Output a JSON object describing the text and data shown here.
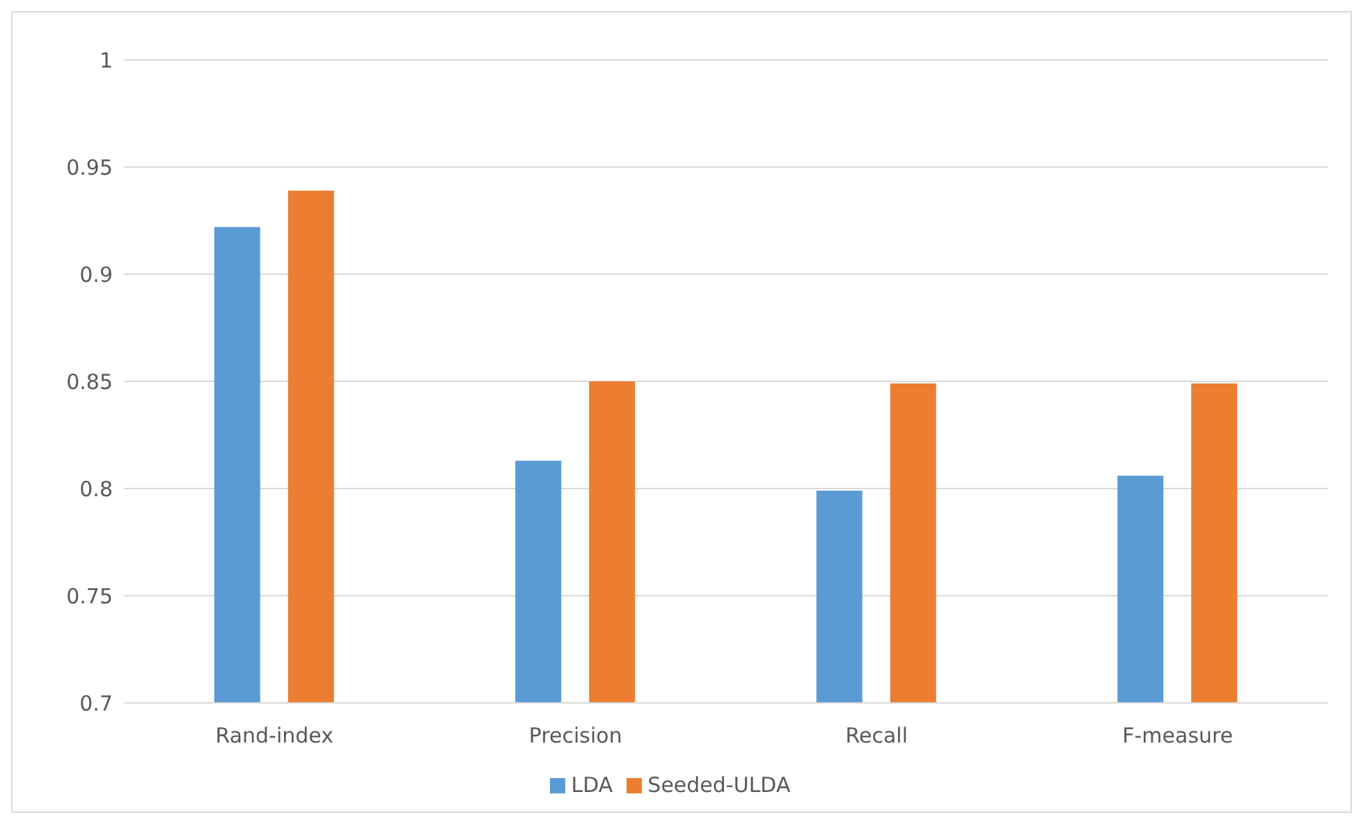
{
  "chart_data": {
    "type": "bar",
    "categories": [
      "Rand-index",
      "Precision",
      "Recall",
      "F-measure"
    ],
    "series": [
      {
        "name": "LDA",
        "color": "#5b9bd5",
        "values": [
          0.922,
          0.813,
          0.799,
          0.806
        ]
      },
      {
        "name": "Seeded-ULDA",
        "color": "#ed7d31",
        "values": [
          0.939,
          0.85,
          0.849,
          0.849
        ]
      }
    ],
    "ylim": [
      0.7,
      1
    ],
    "yticks": [
      0.7,
      0.75,
      0.8,
      0.85,
      0.9,
      0.95,
      1
    ],
    "grid": "y",
    "legend": "bottom"
  }
}
